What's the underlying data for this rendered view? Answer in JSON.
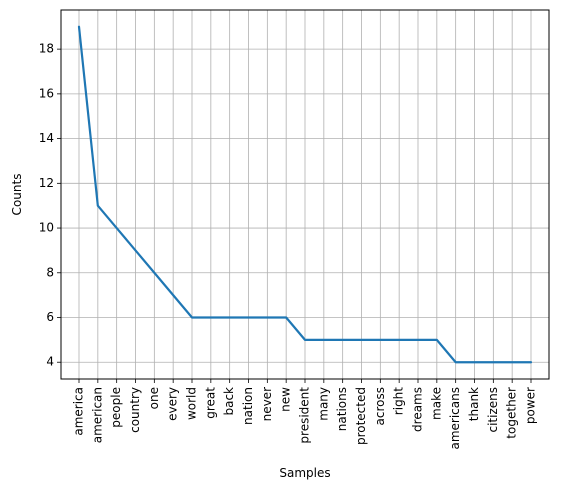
{
  "chart_data": {
    "type": "line",
    "title": "",
    "xlabel": "Samples",
    "ylabel": "Counts",
    "categories": [
      "america",
      "american",
      "people",
      "country",
      "one",
      "every",
      "world",
      "great",
      "back",
      "nation",
      "never",
      "new",
      "president",
      "many",
      "nations",
      "protected",
      "across",
      "right",
      "dreams",
      "make",
      "americans",
      "thank",
      "citizens",
      "together",
      "power"
    ],
    "values": [
      19,
      11,
      10,
      9,
      8,
      7,
      6,
      6,
      6,
      6,
      6,
      6,
      5,
      5,
      5,
      5,
      5,
      5,
      5,
      5,
      4,
      4,
      4,
      4,
      4
    ],
    "yticks": [
      4,
      6,
      8,
      10,
      12,
      14,
      16,
      18
    ],
    "ylim": [
      3.25,
      19.75
    ],
    "grid": true,
    "line_color": "#1f77b4",
    "grid_color": "#b0b0b0"
  }
}
